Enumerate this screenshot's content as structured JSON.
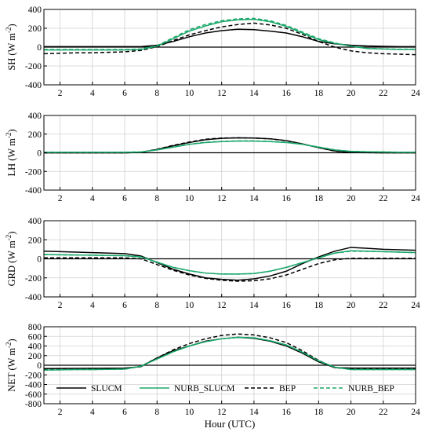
{
  "chart_data": [
    {
      "type": "line",
      "ylabel_main": "SH (W m",
      "ylabel_sup": "-2",
      "ylabel_end": ")",
      "xlim": [
        1,
        24
      ],
      "ylim": [
        -400,
        400
      ],
      "xticks": [
        2,
        4,
        6,
        8,
        10,
        12,
        14,
        16,
        18,
        20,
        22,
        24
      ],
      "xtick_labels": [
        "2",
        "4",
        "6",
        "8",
        "10",
        "12",
        "14",
        "16",
        "18",
        "20",
        "22",
        "24"
      ],
      "yticks": [
        -400,
        -200,
        0,
        200,
        400
      ],
      "ytick_labels": [
        "-400",
        "-200",
        "0",
        "200",
        "400"
      ],
      "x": [
        1,
        2,
        3,
        4,
        5,
        6,
        7,
        8,
        9,
        10,
        11,
        12,
        13,
        14,
        15,
        16,
        17,
        18,
        19,
        20,
        21,
        22,
        23,
        24
      ],
      "series": [
        {
          "name": "SLUCM",
          "values": [
            5,
            5,
            5,
            5,
            5,
            5,
            5,
            20,
            60,
            110,
            150,
            175,
            190,
            185,
            170,
            150,
            110,
            60,
            35,
            20,
            12,
            8,
            5,
            5
          ]
        },
        {
          "name": "NURB_SLUCM",
          "values": [
            -30,
            -30,
            -30,
            -30,
            -30,
            -30,
            -25,
            10,
            90,
            170,
            225,
            270,
            290,
            295,
            270,
            220,
            150,
            80,
            40,
            10,
            -15,
            -20,
            -25,
            -25
          ]
        },
        {
          "name": "BEP",
          "values": [
            -70,
            -65,
            -60,
            -60,
            -55,
            -50,
            -35,
            5,
            70,
            130,
            175,
            215,
            240,
            255,
            235,
            200,
            135,
            60,
            0,
            -40,
            -60,
            -70,
            -75,
            -80
          ]
        },
        {
          "name": "NURB_BEP",
          "values": [
            -25,
            -25,
            -25,
            -25,
            -25,
            -25,
            -20,
            15,
            100,
            185,
            240,
            280,
            300,
            305,
            280,
            230,
            160,
            90,
            45,
            10,
            -12,
            -18,
            -22,
            -22
          ]
        }
      ]
    },
    {
      "type": "line",
      "ylabel_main": "LH (W m",
      "ylabel_sup": "-2",
      "ylabel_end": ")",
      "xlim": [
        1,
        24
      ],
      "ylim": [
        -400,
        400
      ],
      "xticks": [
        2,
        4,
        6,
        8,
        10,
        12,
        14,
        16,
        18,
        20,
        22,
        24
      ],
      "xtick_labels": [
        "2",
        "4",
        "6",
        "8",
        "10",
        "12",
        "14",
        "16",
        "18",
        "20",
        "22",
        "24"
      ],
      "yticks": [
        -400,
        -200,
        0,
        200,
        400
      ],
      "ytick_labels": [
        "-400",
        "-200",
        "0",
        "200",
        "400"
      ],
      "x": [
        1,
        2,
        3,
        4,
        5,
        6,
        7,
        8,
        9,
        10,
        11,
        12,
        13,
        14,
        15,
        16,
        17,
        18,
        19,
        20,
        21,
        22,
        23,
        24
      ],
      "series": [
        {
          "name": "SLUCM",
          "values": [
            0,
            0,
            0,
            0,
            0,
            0,
            5,
            35,
            75,
            110,
            140,
            155,
            160,
            158,
            150,
            130,
            95,
            55,
            20,
            5,
            2,
            0,
            0,
            0
          ]
        },
        {
          "name": "NURB_SLUCM",
          "values": [
            5,
            5,
            5,
            5,
            5,
            5,
            8,
            30,
            60,
            90,
            110,
            120,
            125,
            125,
            120,
            110,
            90,
            60,
            30,
            15,
            10,
            8,
            5,
            5
          ]
        },
        {
          "name": "BEP",
          "values": [
            0,
            0,
            0,
            0,
            0,
            0,
            5,
            38,
            80,
            115,
            145,
            158,
            160,
            158,
            150,
            130,
            95,
            55,
            18,
            4,
            1,
            0,
            0,
            0
          ]
        },
        {
          "name": "NURB_BEP",
          "values": [
            6,
            6,
            6,
            6,
            6,
            6,
            9,
            32,
            62,
            92,
            112,
            122,
            127,
            127,
            122,
            112,
            92,
            62,
            32,
            16,
            11,
            9,
            6,
            6
          ]
        }
      ]
    },
    {
      "type": "line",
      "ylabel_main": "GRD (W m",
      "ylabel_sup": "-2",
      "ylabel_end": ")",
      "xlim": [
        1,
        24
      ],
      "ylim": [
        -400,
        400
      ],
      "xticks": [
        2,
        4,
        6,
        8,
        10,
        12,
        14,
        16,
        18,
        20,
        22,
        24
      ],
      "xtick_labels": [
        "2",
        "4",
        "6",
        "8",
        "10",
        "12",
        "14",
        "16",
        "18",
        "20",
        "22",
        "24"
      ],
      "yticks": [
        -400,
        -200,
        0,
        200,
        400
      ],
      "ytick_labels": [
        "-400",
        "-200",
        "0",
        "200",
        "400"
      ],
      "x": [
        1,
        2,
        3,
        4,
        5,
        6,
        7,
        8,
        9,
        10,
        11,
        12,
        13,
        14,
        15,
        16,
        17,
        18,
        19,
        20,
        21,
        22,
        23,
        24
      ],
      "series": [
        {
          "name": "SLUCM",
          "values": [
            80,
            75,
            70,
            65,
            60,
            55,
            30,
            -40,
            -110,
            -160,
            -200,
            -215,
            -225,
            -210,
            -180,
            -130,
            -50,
            20,
            80,
            120,
            110,
            100,
            95,
            90
          ]
        },
        {
          "name": "NURB_SLUCM",
          "values": [
            45,
            42,
            40,
            38,
            35,
            33,
            20,
            -35,
            -90,
            -125,
            -150,
            -160,
            -160,
            -155,
            -130,
            -90,
            -40,
            10,
            60,
            85,
            80,
            75,
            70,
            65
          ]
        },
        {
          "name": "BEP",
          "values": [
            10,
            10,
            10,
            10,
            10,
            10,
            0,
            -60,
            -120,
            -170,
            -205,
            -225,
            -235,
            -230,
            -210,
            -170,
            -110,
            -50,
            -10,
            5,
            5,
            5,
            5,
            5
          ]
        },
        {
          "name": "NURB_BEP",
          "values": [
            45,
            42,
            40,
            38,
            35,
            33,
            20,
            -35,
            -90,
            -125,
            -150,
            -160,
            -160,
            -155,
            -130,
            -90,
            -40,
            10,
            60,
            80,
            78,
            75,
            70,
            65
          ]
        }
      ]
    },
    {
      "type": "line",
      "ylabel_main": "NET (W m",
      "ylabel_sup": "-2",
      "ylabel_end": ")",
      "xlabel": "Hour (UTC)",
      "xlim": [
        1,
        24
      ],
      "ylim": [
        -800,
        800
      ],
      "xticks": [
        2,
        4,
        6,
        8,
        10,
        12,
        14,
        16,
        18,
        20,
        22,
        24
      ],
      "xtick_labels": [
        "2",
        "4",
        "6",
        "8",
        "10",
        "12",
        "14",
        "16",
        "18",
        "20",
        "22",
        "24"
      ],
      "yticks": [
        -800,
        -600,
        -400,
        -200,
        0,
        200,
        400,
        600,
        800
      ],
      "ytick_labels": [
        "-800",
        "-600",
        "-400",
        "-200",
        "0",
        "200",
        "400",
        "600",
        "800"
      ],
      "x": [
        1,
        2,
        3,
        4,
        5,
        6,
        7,
        8,
        9,
        10,
        11,
        12,
        13,
        14,
        15,
        16,
        17,
        18,
        19,
        20,
        21,
        22,
        23,
        24
      ],
      "series": [
        {
          "name": "SLUCM",
          "values": [
            -70,
            -68,
            -66,
            -64,
            -62,
            -60,
            -30,
            150,
            300,
            400,
            500,
            550,
            580,
            560,
            500,
            400,
            250,
            70,
            -50,
            -60,
            -60,
            -60,
            -60,
            -60
          ]
        },
        {
          "name": "NURB_SLUCM",
          "values": [
            -100,
            -95,
            -90,
            -90,
            -85,
            -80,
            -20,
            130,
            280,
            400,
            490,
            550,
            580,
            570,
            510,
            420,
            270,
            90,
            -40,
            -90,
            -90,
            -90,
            -90,
            -90
          ]
        },
        {
          "name": "BEP",
          "values": [
            -90,
            -88,
            -86,
            -84,
            -82,
            -80,
            -20,
            150,
            320,
            450,
            550,
            620,
            650,
            630,
            570,
            470,
            300,
            100,
            -50,
            -80,
            -80,
            -80,
            -80,
            -80
          ]
        },
        {
          "name": "NURB_BEP",
          "values": [
            -100,
            -95,
            -90,
            -90,
            -85,
            -80,
            -20,
            130,
            280,
            400,
            490,
            550,
            580,
            570,
            510,
            420,
            270,
            90,
            -40,
            -90,
            -90,
            -90,
            -90,
            -90
          ]
        }
      ]
    }
  ],
  "legend": {
    "entries": [
      {
        "label": "SLUCM",
        "color": "#000000",
        "dash": "solid"
      },
      {
        "label": "NURB_SLUCM",
        "color": "#1aa86a",
        "dash": "solid"
      },
      {
        "label": "BEP",
        "color": "#000000",
        "dash": "dashed"
      },
      {
        "label": "NURB_BEP",
        "color": "#1aa86a",
        "dash": "dashed"
      }
    ],
    "placement": "bottom of last panel"
  },
  "colors": {
    "black": "#000000",
    "green": "#1aa86a",
    "grid": "#cccccc"
  }
}
